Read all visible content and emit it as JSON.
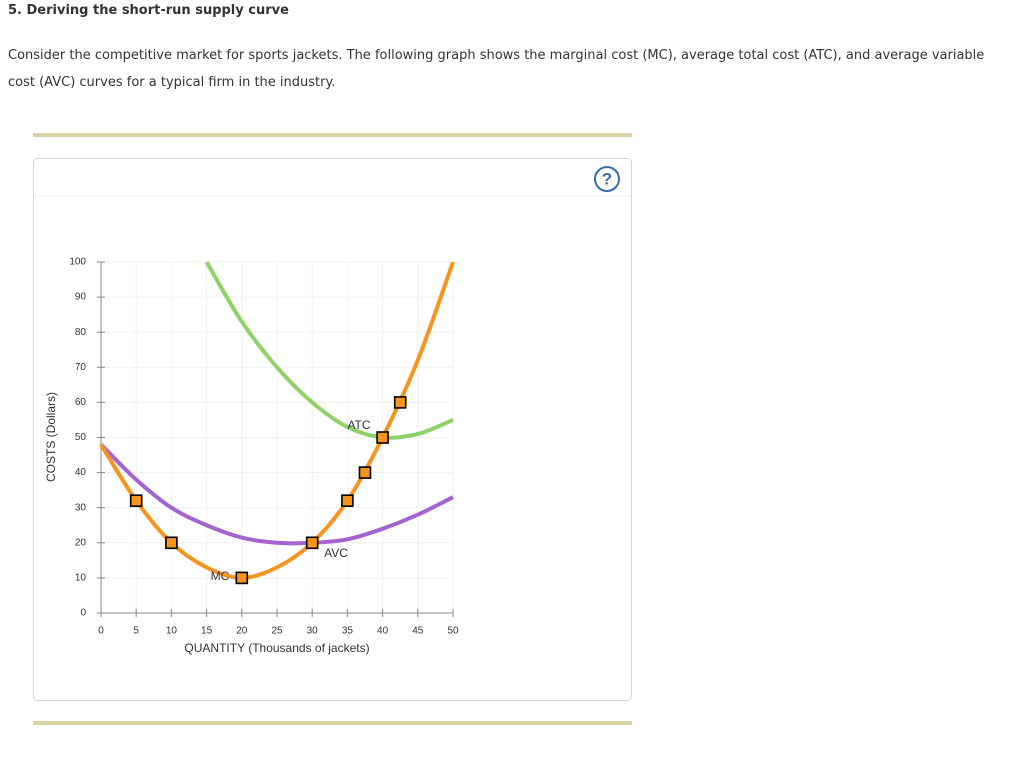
{
  "header": {
    "title": "5. Deriving the short-run supply curve",
    "paragraph": "Consider the competitive market for sports jackets. The following graph shows the marginal cost (MC), average total cost (ATC), and average variable cost (AVC) curves for a typical firm in the industry."
  },
  "help_icon": "?",
  "chart_data": {
    "type": "line",
    "x_label": "QUANTITY (Thousands of jackets)",
    "y_label": "COSTS (Dollars)",
    "xlim": [
      0,
      50
    ],
    "xticks": [
      0,
      5,
      10,
      15,
      20,
      25,
      30,
      35,
      40,
      45,
      50
    ],
    "ylim": [
      0,
      100
    ],
    "yticks": [
      0,
      10,
      20,
      30,
      40,
      50,
      60,
      70,
      80,
      90,
      100
    ],
    "grid": true,
    "series": [
      {
        "name": "MC",
        "color": "#f7941d",
        "x": [
          0,
          5,
          10,
          15,
          20,
          25,
          30,
          35,
          40,
          45,
          50
        ],
        "values": [
          48,
          32,
          20,
          13,
          10,
          13,
          20,
          32,
          50,
          72,
          100
        ]
      },
      {
        "name": "ATC",
        "color": "#8dd36a",
        "x": [
          15,
          20,
          25,
          30,
          35,
          40,
          45,
          50
        ],
        "values": [
          100,
          83,
          70,
          60,
          53,
          50,
          51,
          55
        ]
      },
      {
        "name": "AVC",
        "color": "#a463d0",
        "x": [
          0,
          5,
          10,
          15,
          20,
          25,
          30,
          35,
          40,
          45,
          50
        ],
        "values": [
          48,
          38,
          30,
          25,
          21.5,
          20,
          20,
          21,
          24,
          28,
          33
        ]
      }
    ],
    "markers": {
      "color": "#f7941d",
      "x": [
        5,
        10,
        20,
        30,
        35,
        37.5,
        40,
        42.5
      ],
      "values": [
        32,
        20,
        10,
        20,
        32,
        40,
        50,
        60
      ]
    }
  }
}
